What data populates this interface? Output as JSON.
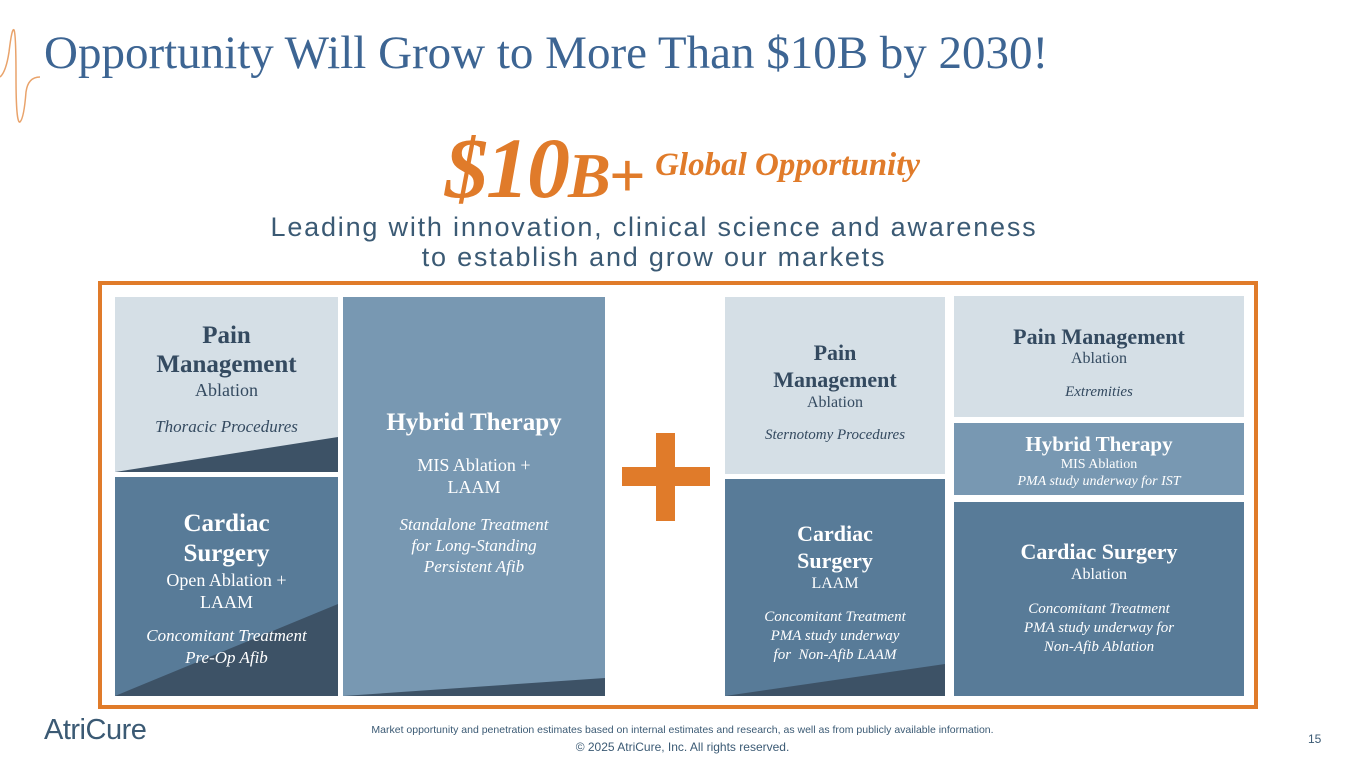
{
  "slide": {
    "title": "Opportunity Will Grow to More Than $10B by 2030!",
    "headline": {
      "amount": "$10",
      "unit": "B+",
      "label": "Global Opportunity"
    },
    "subtitle_line1": "Leading with innovation, clinical science and awareness",
    "subtitle_line2": "to establish and grow our markets",
    "plus_symbol": "+",
    "accent_color": "#e07b2a",
    "title_color": "#3d6593"
  },
  "tiles": {
    "pain_thoracic": {
      "title_line1": "Pain",
      "title_line2": "Management",
      "subtitle": "Ablation",
      "note": "Thoracic Procedures"
    },
    "cardiac_open": {
      "title_line1": "Cardiac",
      "title_line2": "Surgery",
      "subtitle_line1": "Open Ablation +",
      "subtitle_line2": "LAAM",
      "note_line1": "Concomitant Treatment",
      "note_line2": "Pre-Op Afib"
    },
    "hybrid": {
      "title": "Hybrid Therapy",
      "subtitle_line1": "MIS Ablation +",
      "subtitle_line2": "LAAM",
      "note_line1": "Standalone Treatment",
      "note_line2": "for Long-Standing",
      "note_line3": "Persistent Afib"
    },
    "pain_sternotomy": {
      "title_line1": "Pain",
      "title_line2": "Management",
      "subtitle": "Ablation",
      "note": "Sternotomy Procedures"
    },
    "cardiac_laam": {
      "title_line1": "Cardiac",
      "title_line2": "Surgery",
      "subtitle": "LAAM",
      "note_line1": "Concomitant Treatment",
      "note_line2": "PMA study underway",
      "note_line3": "for  Non-Afib LAAM"
    },
    "pain_extremities": {
      "title": "Pain Management",
      "subtitle": "Ablation",
      "note": "Extremities"
    },
    "hybrid_ist": {
      "title": "Hybrid Therapy",
      "subtitle": "MIS Ablation",
      "note": "PMA study underway for IST"
    },
    "cardiac_ablation": {
      "title": "Cardiac Surgery",
      "subtitle": "Ablation",
      "note_line1": "Concomitant Treatment",
      "note_line2": "PMA study underway for",
      "note_line3": "Non-Afib Ablation"
    }
  },
  "footer": {
    "logo_text": "AtriCure",
    "disclaimer": "Market opportunity and penetration estimates based on internal estimates and research, as well as from publicly available information.",
    "copyright": "© 2025 AtriCure, Inc. All rights reserved.",
    "page_number": "15"
  }
}
